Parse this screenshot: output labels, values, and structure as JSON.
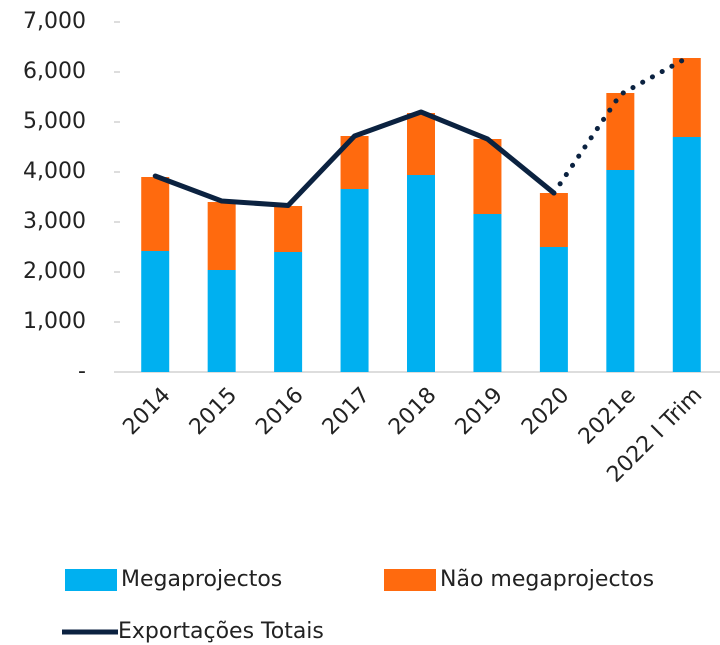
{
  "chart_data": {
    "type": "stacked_bar_line",
    "categories": [
      "2014",
      "2015",
      "2016",
      "2017",
      "2018",
      "2019",
      "2020",
      "2021e",
      "2022 I Trim"
    ],
    "series": [
      {
        "name": "Megaprojectos",
        "color": "#00b0f0",
        "kind": "bar",
        "values": [
          2420,
          2040,
          2400,
          3660,
          3940,
          3160,
          2500,
          4040,
          4700
        ]
      },
      {
        "name": "Não megaprojectos",
        "color": "#ff6a0e",
        "kind": "bar",
        "values": [
          1480,
          1360,
          920,
          1060,
          1240,
          1500,
          1080,
          1540,
          1580
        ]
      },
      {
        "name": "Exportações Totais",
        "color": "#0b2240",
        "kind": "line",
        "dotted_from": 6,
        "values": [
          3920,
          3420,
          3330,
          4720,
          5200,
          4660,
          3580,
          5550,
          6280
        ]
      }
    ],
    "ylim": [
      0,
      7000
    ],
    "yticks": [
      {
        "value": 0,
        "label": "-"
      },
      {
        "value": 1000,
        "label": "1,000"
      },
      {
        "value": 2000,
        "label": "2,000"
      },
      {
        "value": 3000,
        "label": "3,000"
      },
      {
        "value": 4000,
        "label": "4,000"
      },
      {
        "value": 5000,
        "label": "5,000"
      },
      {
        "value": 6000,
        "label": "6,000"
      },
      {
        "value": 7000,
        "label": "7,000"
      }
    ],
    "grid": false
  }
}
